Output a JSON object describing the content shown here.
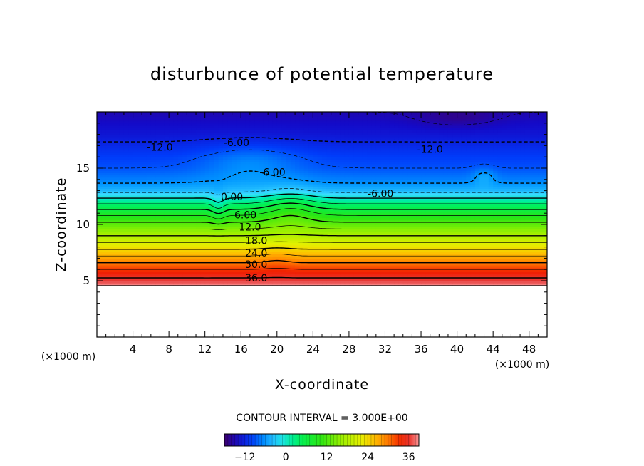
{
  "chart_data": {
    "type": "heatmap",
    "title": "disturbunce of potential temperature",
    "xlabel": "X-coordinate",
    "ylabel": "Z-coordinate",
    "x_unit_label": "(×1000 m)",
    "y_unit_label": "(×1000 m)",
    "xlim": [
      0,
      50
    ],
    "ylim": [
      0,
      20
    ],
    "x_ticks": [
      4,
      8,
      12,
      16,
      20,
      24,
      28,
      32,
      36,
      40,
      44,
      48
    ],
    "y_ticks": [
      5,
      10,
      15
    ],
    "contour_interval_text": "CONTOUR INTERVAL = 3.000E+00",
    "contour_interval": 3.0,
    "colorbar": {
      "min": -18,
      "max": 39,
      "ticks": [
        -12,
        0,
        12,
        24,
        36
      ]
    },
    "contour_labels": [
      {
        "text": "-12.0",
        "x": 7.0,
        "z": 16.8
      },
      {
        "text": "-6.00",
        "x": 15.5,
        "z": 17.2
      },
      {
        "text": "-6.00",
        "x": 19.5,
        "z": 14.6
      },
      {
        "text": "-12.0",
        "x": 37.0,
        "z": 16.6
      },
      {
        "text": "-6.00",
        "x": 31.5,
        "z": 12.7
      },
      {
        "text": "0.00",
        "x": 15.0,
        "z": 12.4
      },
      {
        "text": "6.00",
        "x": 16.5,
        "z": 10.8
      },
      {
        "text": "12.0",
        "x": 17.0,
        "z": 9.7
      },
      {
        "text": "18.0",
        "x": 17.7,
        "z": 8.5
      },
      {
        "text": "24.0",
        "x": 17.7,
        "z": 7.4
      },
      {
        "text": "30.0",
        "x": 17.7,
        "z": 6.4
      },
      {
        "text": "36.0",
        "x": 17.7,
        "z": 5.2
      }
    ],
    "profile": {
      "z": [
        0,
        4.6,
        5.0,
        5.5,
        6.0,
        6.5,
        7.0,
        7.5,
        8.0,
        8.5,
        9.0,
        9.5,
        10.0,
        10.5,
        11.0,
        11.5,
        12.0,
        12.5,
        13.0,
        14.0,
        15.0,
        16.0,
        17.0,
        18.0,
        19.0,
        20.0
      ],
      "theta": [
        null,
        39,
        37,
        35,
        33,
        30.5,
        28,
        25.5,
        23,
        20.5,
        18,
        15.5,
        13,
        10.5,
        8,
        5,
        2,
        -1,
        -4,
        -7,
        -9,
        -10,
        -11.5,
        -13,
        -14,
        -15
      ]
    }
  }
}
